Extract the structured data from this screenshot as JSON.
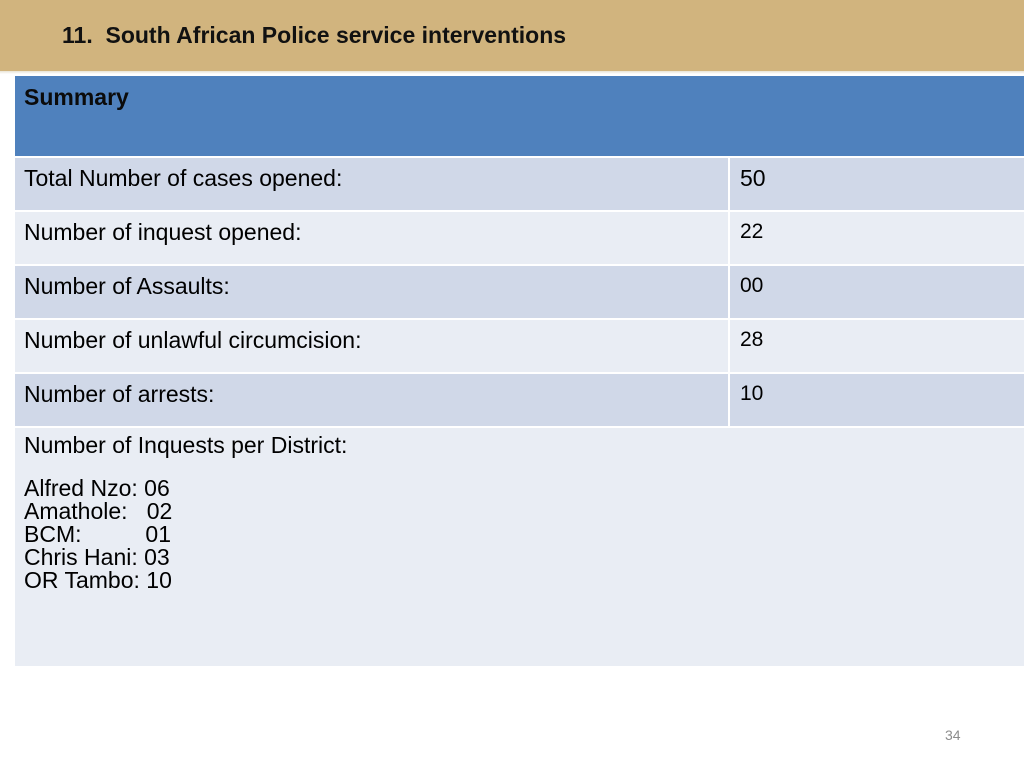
{
  "header": {
    "title": "11.  South African Police service interventions"
  },
  "table": {
    "heading": "Summary",
    "rows": [
      {
        "label": "Total Number of cases opened:",
        "value": "50"
      },
      {
        "label": "Number of inquest opened:",
        "value": "22"
      },
      {
        "label": "Number of Assaults:",
        "value": "00"
      },
      {
        "label": "Number of unlawful circumcision:",
        "value": "28"
      },
      {
        "label": "Number of arrests:",
        "value": "10"
      }
    ],
    "districts": {
      "heading": "Number of Inquests per District:",
      "items": [
        "Alfred Nzo: 06",
        "Amathole:   02",
        "BCM:          01",
        "Chris Hani: 03",
        "OR Tambo: 10"
      ]
    }
  },
  "footer": {
    "page_number": "34"
  },
  "colors": {
    "title_bar": "#d1b47e",
    "table_header": "#4f81bd",
    "row_dark": "#d0d8e8",
    "row_light": "#e9edf4"
  }
}
